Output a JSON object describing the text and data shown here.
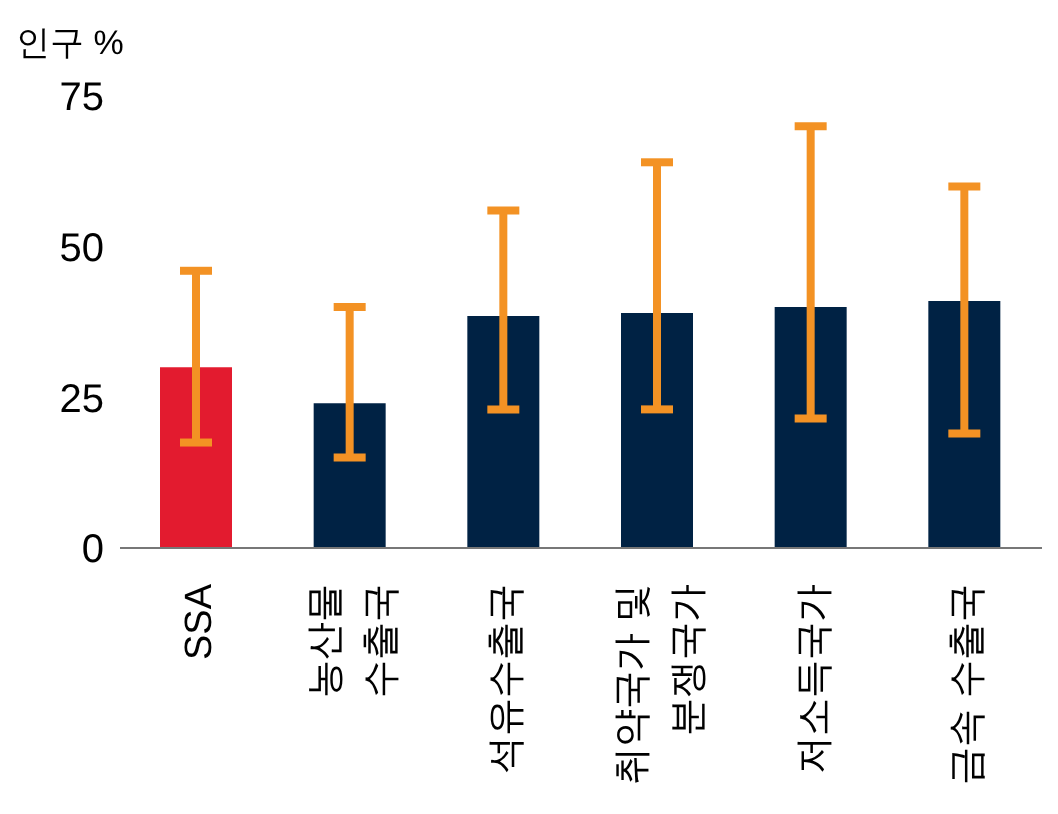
{
  "chart_data": {
    "type": "bar",
    "ylabel": "인구 %",
    "categories": [
      "SSA",
      "농산물\n수출국",
      "석유수출국",
      "취약국가 및\n분쟁국가",
      "저소득국가",
      "금속 수출국"
    ],
    "values": [
      30,
      24,
      38.5,
      39,
      40,
      41
    ],
    "colors": [
      "#e31b2f",
      "#002244",
      "#002244",
      "#002244",
      "#002244",
      "#002244"
    ],
    "errors": [
      [
        17.5,
        46
      ],
      [
        15,
        40
      ],
      [
        23,
        56
      ],
      [
        23,
        64
      ],
      [
        21.5,
        70
      ],
      [
        19,
        60
      ]
    ],
    "ylim": [
      0,
      75
    ],
    "yticks": [
      0,
      25,
      50,
      75
    ],
    "grid": false,
    "legend": false
  }
}
